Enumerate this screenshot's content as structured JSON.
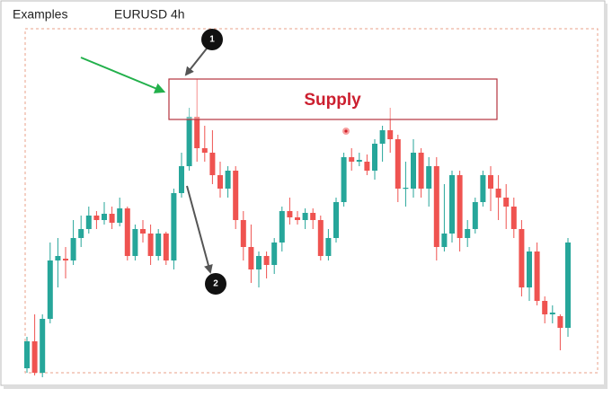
{
  "chart_data": {
    "type": "candlestick",
    "header": "Examples",
    "title": "EURUSD 4h",
    "annotations": {
      "zone": "Supply",
      "marker_1": "1",
      "marker_2": "2"
    },
    "up_color": "#26a69a",
    "down_color": "#ef5350",
    "ylim": [
      0,
      420
    ],
    "candles": [
      [
        10,
        45,
        5,
        40
      ],
      [
        40,
        70,
        2,
        5
      ],
      [
        5,
        70,
        0,
        65
      ],
      [
        65,
        150,
        60,
        130
      ],
      [
        130,
        155,
        100,
        135
      ],
      [
        132,
        145,
        110,
        130
      ],
      [
        130,
        175,
        125,
        155
      ],
      [
        155,
        180,
        145,
        165
      ],
      [
        165,
        190,
        160,
        180
      ],
      [
        180,
        185,
        165,
        175
      ],
      [
        175,
        195,
        170,
        182
      ],
      [
        182,
        190,
        165,
        172
      ],
      [
        172,
        200,
        168,
        188
      ],
      [
        188,
        190,
        130,
        135
      ],
      [
        135,
        170,
        130,
        165
      ],
      [
        165,
        175,
        150,
        160
      ],
      [
        160,
        170,
        125,
        135
      ],
      [
        135,
        165,
        130,
        160
      ],
      [
        160,
        162,
        125,
        130
      ],
      [
        130,
        210,
        120,
        205
      ],
      [
        205,
        250,
        200,
        235
      ],
      [
        235,
        300,
        230,
        290
      ],
      [
        290,
        332,
        240,
        255
      ],
      [
        255,
        280,
        240,
        250
      ],
      [
        250,
        275,
        215,
        225
      ],
      [
        225,
        240,
        200,
        210
      ],
      [
        210,
        235,
        200,
        230
      ],
      [
        230,
        235,
        165,
        175
      ],
      [
        175,
        185,
        130,
        145
      ],
      [
        145,
        170,
        105,
        120
      ],
      [
        120,
        140,
        100,
        135
      ],
      [
        135,
        140,
        110,
        125
      ],
      [
        125,
        155,
        115,
        150
      ],
      [
        150,
        190,
        140,
        185
      ],
      [
        185,
        200,
        170,
        178
      ],
      [
        178,
        185,
        170,
        175
      ],
      [
        175,
        188,
        165,
        183
      ],
      [
        183,
        188,
        165,
        175
      ],
      [
        175,
        180,
        130,
        135
      ],
      [
        135,
        165,
        130,
        155
      ],
      [
        155,
        200,
        150,
        195
      ],
      [
        195,
        250,
        190,
        245
      ],
      [
        245,
        255,
        230,
        240
      ],
      [
        240,
        250,
        235,
        242
      ],
      [
        240,
        248,
        225,
        230
      ],
      [
        230,
        265,
        220,
        260
      ],
      [
        260,
        280,
        240,
        275
      ],
      [
        275,
        300,
        250,
        265
      ],
      [
        265,
        270,
        195,
        210
      ],
      [
        210,
        240,
        190,
        211
      ],
      [
        210,
        265,
        200,
        250
      ],
      [
        250,
        255,
        200,
        210
      ],
      [
        210,
        245,
        190,
        235
      ],
      [
        235,
        245,
        130,
        145
      ],
      [
        145,
        215,
        140,
        160
      ],
      [
        160,
        230,
        150,
        225
      ],
      [
        225,
        230,
        140,
        155
      ],
      [
        155,
        175,
        145,
        165
      ],
      [
        165,
        200,
        160,
        195
      ],
      [
        195,
        230,
        190,
        225
      ],
      [
        225,
        235,
        185,
        210
      ],
      [
        210,
        225,
        175,
        200
      ],
      [
        200,
        215,
        165,
        190
      ],
      [
        190,
        200,
        155,
        165
      ],
      [
        165,
        175,
        90,
        100
      ],
      [
        100,
        145,
        85,
        140
      ],
      [
        140,
        150,
        80,
        85
      ],
      [
        85,
        90,
        60,
        70
      ],
      [
        70,
        80,
        60,
        72
      ],
      [
        68,
        70,
        30,
        55
      ],
      [
        55,
        155,
        45,
        150
      ]
    ]
  }
}
